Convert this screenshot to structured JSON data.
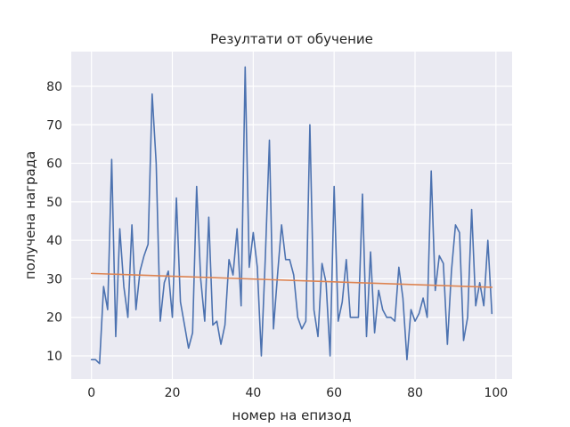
{
  "chart_data": {
    "type": "line",
    "title": "Резултати от обучение",
    "xlabel": "номер на епизод",
    "ylabel": "получена награда",
    "xlim": [
      -5,
      104
    ],
    "ylim": [
      4,
      89
    ],
    "xticks": [
      0,
      20,
      40,
      60,
      80,
      100
    ],
    "yticks": [
      10,
      20,
      30,
      40,
      50,
      60,
      70,
      80
    ],
    "grid": true,
    "background": "#eaeaf2",
    "series": [
      {
        "color": "#4c72b0",
        "x": [
          0,
          1,
          2,
          3,
          4,
          5,
          6,
          7,
          8,
          9,
          10,
          11,
          12,
          13,
          14,
          15,
          16,
          17,
          18,
          19,
          20,
          21,
          22,
          23,
          24,
          25,
          26,
          27,
          28,
          29,
          30,
          31,
          32,
          33,
          34,
          35,
          36,
          37,
          38,
          39,
          40,
          41,
          42,
          43,
          44,
          45,
          46,
          47,
          48,
          49,
          50,
          51,
          52,
          53,
          54,
          55,
          56,
          57,
          58,
          59,
          60,
          61,
          62,
          63,
          64,
          65,
          66,
          67,
          68,
          69,
          70,
          71,
          72,
          73,
          74,
          75,
          76,
          77,
          78,
          79,
          80,
          81,
          82,
          83,
          84,
          85,
          86,
          87,
          88,
          89,
          90,
          91,
          92,
          93,
          94,
          95,
          96,
          97,
          98,
          99
        ],
        "y": [
          9,
          9,
          8,
          28,
          22,
          61,
          15,
          43,
          28,
          20,
          44,
          22,
          32,
          36,
          39,
          78,
          60,
          19,
          29,
          32,
          20,
          51,
          24,
          18,
          12,
          16,
          54,
          30,
          19,
          46,
          18,
          19,
          13,
          18,
          35,
          31,
          43,
          23,
          85,
          33,
          42,
          33,
          10,
          36,
          66,
          17,
          31,
          44,
          35,
          35,
          31,
          20,
          17,
          19,
          70,
          22,
          15,
          34,
          29,
          10,
          54,
          19,
          24,
          35,
          20,
          20,
          20,
          52,
          15,
          37,
          16,
          27,
          22,
          20,
          20,
          19,
          33,
          25,
          9,
          22,
          19,
          21,
          25,
          20,
          58,
          27,
          36,
          34,
          13,
          32,
          44,
          42,
          14,
          20,
          48,
          23,
          29,
          23,
          40,
          21
        ]
      },
      {
        "color": "#dd8452",
        "x": [
          0,
          99
        ],
        "y": [
          31.4,
          27.8
        ]
      }
    ]
  }
}
